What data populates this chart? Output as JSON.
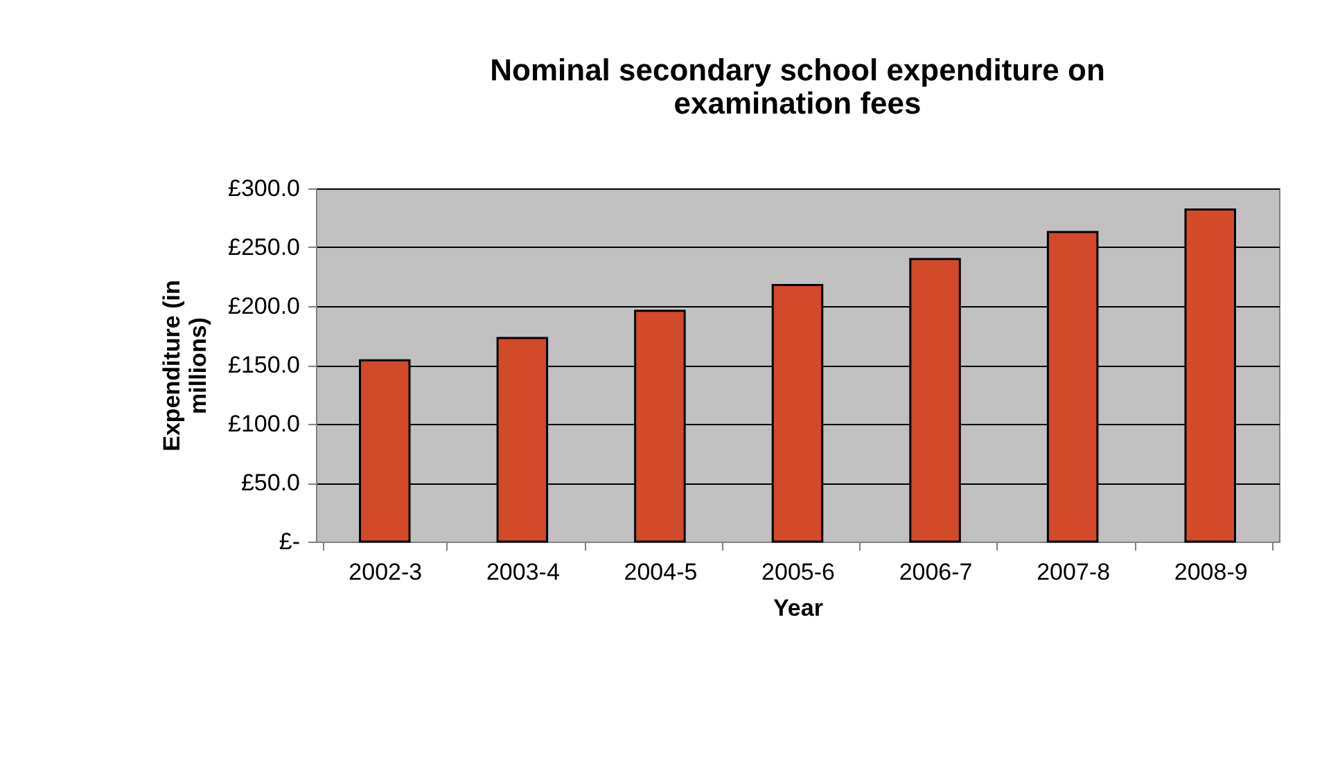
{
  "chart_data": {
    "type": "bar",
    "title": "Nominal secondary school expenditure on examination fees",
    "xlabel": "Year",
    "ylabel": "Expenditure (in millions)",
    "categories": [
      "2002-3",
      "2003-4",
      "2004-5",
      "2005-6",
      "2006-7",
      "2007-8",
      "2008-9"
    ],
    "values": [
      154,
      173,
      196,
      218,
      240,
      263,
      282
    ],
    "color": "#d24a2a",
    "ylim": [
      0,
      300
    ],
    "yticks": [
      {
        "value": 0,
        "label": "£-"
      },
      {
        "value": 50,
        "label": "£50.0"
      },
      {
        "value": 100,
        "label": "£100.0"
      },
      {
        "value": 150,
        "label": "£150.0"
      },
      {
        "value": 200,
        "label": "£200.0"
      },
      {
        "value": 250,
        "label": "£250.0"
      },
      {
        "value": 300,
        "label": "£300.0"
      }
    ],
    "grid": "y"
  }
}
